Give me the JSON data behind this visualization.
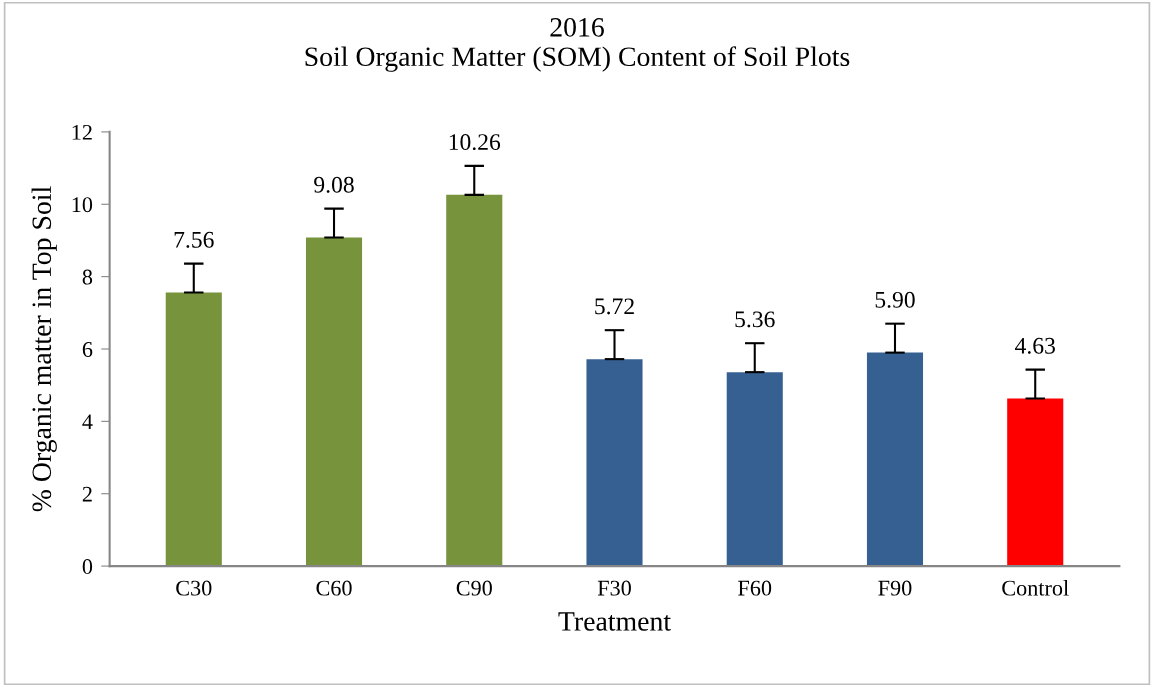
{
  "chart_data": {
    "type": "bar",
    "title": "2016\nSoil Organic Matter (SOM) Content of Soil Plots",
    "xlabel": "Treatment",
    "ylabel": "% Organic matter in Top Soil",
    "categories": [
      "C30",
      "C60",
      "C90",
      "F30",
      "F60",
      "F90",
      "Control"
    ],
    "values": [
      7.56,
      9.08,
      10.26,
      5.72,
      5.36,
      5.9,
      4.63
    ],
    "colors": [
      "#77933c",
      "#77933c",
      "#77933c",
      "#376092",
      "#376092",
      "#376092",
      "#ff0000"
    ],
    "errors": [
      [
        7.56,
        8.36
      ],
      [
        9.08,
        9.88
      ],
      [
        10.26,
        11.06
      ],
      [
        5.72,
        6.52
      ],
      [
        5.36,
        6.16
      ],
      [
        5.9,
        6.7
      ],
      [
        4.63,
        5.43
      ]
    ],
    "value_labels": [
      "7.56",
      "9.08",
      "10.26",
      "5.72",
      "5.36",
      "5.90",
      "4.63"
    ],
    "ylim": [
      0,
      12
    ],
    "yticks": [
      0,
      2,
      4,
      6,
      8,
      10,
      12
    ],
    "grid": false,
    "legend": false
  }
}
